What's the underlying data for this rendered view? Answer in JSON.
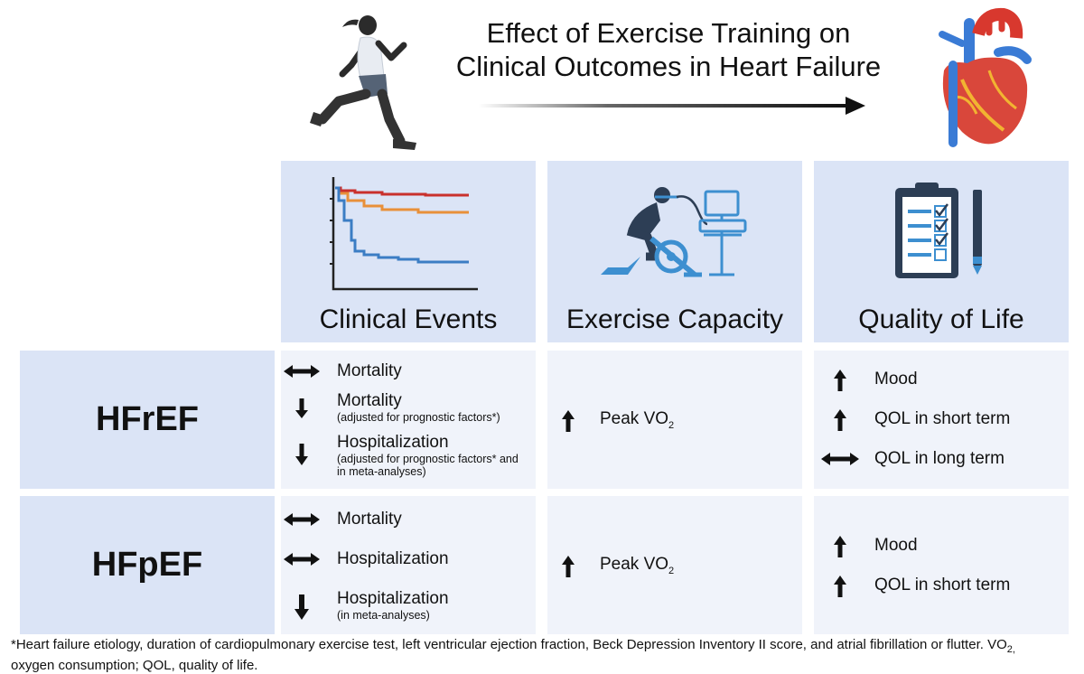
{
  "title": {
    "line1": "Effect of Exercise Training on",
    "line2": "Clinical Outcomes in Heart Failure"
  },
  "columns": {
    "clinical_events": "Clinical Events",
    "exercise_capacity": "Exercise Capacity",
    "quality_of_life": "Quality of Life"
  },
  "rows": {
    "hfref": {
      "label": "HFrEF",
      "clinical": [
        {
          "icon": "both-arrow-icon",
          "text": "Mortality",
          "sub": ""
        },
        {
          "icon": "down-arrow-icon",
          "text": "Mortality",
          "sub": "(adjusted for prognostic factors*)"
        },
        {
          "icon": "down-arrow-icon",
          "text": "Hospitalization",
          "sub1": "(adjusted for prognostic factors* and",
          "sub2": "in meta-analyses)"
        }
      ],
      "capacity": {
        "icon": "up-arrow-icon",
        "text": "Peak VO",
        "subscript": "2"
      },
      "qol": [
        {
          "icon": "up-arrow-icon",
          "text": "Mood"
        },
        {
          "icon": "up-arrow-icon",
          "text": "QOL in short term"
        },
        {
          "icon": "both-arrow-icon",
          "text": "QOL in long term"
        }
      ]
    },
    "hfpef": {
      "label": "HFpEF",
      "clinical": [
        {
          "icon": "both-arrow-icon",
          "text": "Mortality"
        },
        {
          "icon": "both-arrow-icon",
          "text": "Hospitalization"
        },
        {
          "icon": "down-arrow-icon",
          "text": "Hospitalization",
          "sub": "(in meta-analyses)"
        }
      ],
      "capacity": {
        "icon": "up-arrow-icon",
        "text": "Peak VO",
        "subscript": "2"
      },
      "qol": [
        {
          "icon": "up-arrow-icon",
          "text": "Mood"
        },
        {
          "icon": "up-arrow-icon",
          "text": "QOL in short term"
        }
      ]
    }
  },
  "footnote": {
    "line1_text": "*Heart failure etiology, duration of cardiopulmonary exercise test, left ventricular ejection fraction, Beck Depression Inventory II score, and atrial fibrillation or flutter. VO",
    "line1_sub": "2,",
    "line2": "oxygen consumption; QOL, quality of life."
  },
  "colors": {
    "header_bg": "#dbe4f6",
    "cell_bg": "#f0f3fa",
    "curve_red": "#c9302c",
    "curve_orange": "#e8903a",
    "curve_blue": "#3b7dc4",
    "icon_blue": "#3d8fd0",
    "icon_navy": "#2d3e55"
  }
}
